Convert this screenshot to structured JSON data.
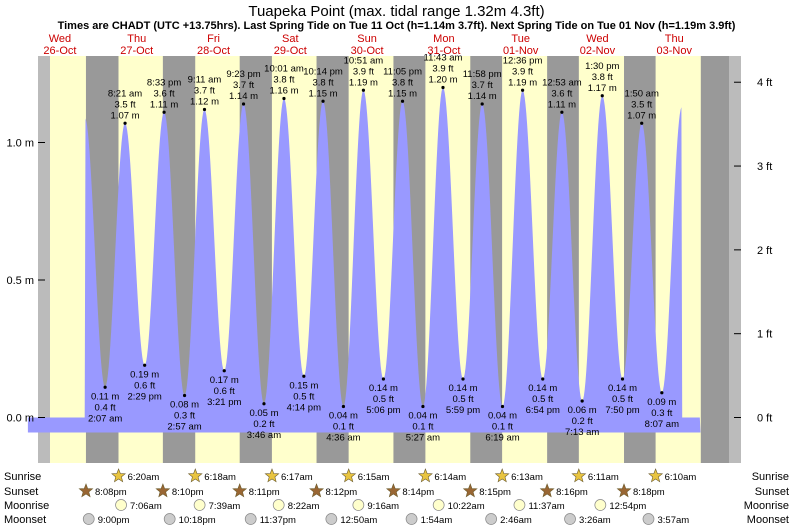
{
  "title": "Tuapeka Point (max. tidal range 1.32m 4.3ft)",
  "subtitle": "Times are CHADT (UTC +13.75hrs). Last Spring Tide on Tue 11 Oct (h=1.14m 3.7ft). Next Spring Tide on Tue 01 Nov (h=1.19m 3.9ft)",
  "days": [
    {
      "name": "Wed",
      "date": "26-Oct"
    },
    {
      "name": "Thu",
      "date": "27-Oct"
    },
    {
      "name": "Fri",
      "date": "28-Oct"
    },
    {
      "name": "Sat",
      "date": "29-Oct"
    },
    {
      "name": "Sun",
      "date": "30-Oct"
    },
    {
      "name": "Mon",
      "date": "31-Oct"
    },
    {
      "name": "Tue",
      "date": "01-Nov"
    },
    {
      "name": "Wed",
      "date": "02-Nov"
    },
    {
      "name": "Thu",
      "date": "03-Nov"
    }
  ],
  "chart_data": {
    "type": "area",
    "title": "Tuapeka Point (max. tidal range 1.32m 4.3ft)",
    "x_unit": "hours from midnight Wed 26-Oct",
    "y_left_ticks": [
      {
        "value": 0.0,
        "label": "0.0 m"
      },
      {
        "value": 0.5,
        "label": "0.5 m"
      },
      {
        "value": 1.0,
        "label": "1.0 m"
      }
    ],
    "y_right_ticks": [
      {
        "value": 0,
        "label": "0 ft"
      },
      {
        "value": 1,
        "label": "1 ft"
      },
      {
        "value": 2,
        "label": "2 ft"
      },
      {
        "value": 3,
        "label": "3 ft"
      },
      {
        "value": 4,
        "label": "4 ft"
      }
    ],
    "ylim_m": [
      -0.2,
      1.5
    ],
    "xlim_hours": [
      -9,
      218
    ],
    "extremes": [
      {
        "type": "high",
        "hour": 19.8,
        "height_m": 1.09,
        "time": "",
        "ft": "",
        "m": "",
        "clipped": true
      },
      {
        "type": "low",
        "hour": 26.12,
        "height_m": 0.11,
        "time": "2:07 am",
        "ft": "0.4 ft",
        "m": "0.11 m"
      },
      {
        "type": "high",
        "hour": 32.35,
        "height_m": 1.07,
        "time": "8:21 am",
        "ft": "3.5 ft",
        "m": "1.07 m"
      },
      {
        "type": "low",
        "hour": 38.48,
        "height_m": 0.19,
        "time": "2:29 pm",
        "ft": "0.6 ft",
        "m": "0.19 m"
      },
      {
        "type": "high",
        "hour": 44.55,
        "height_m": 1.11,
        "time": "8:33 pm",
        "ft": "3.6 ft",
        "m": "1.11 m"
      },
      {
        "type": "low",
        "hour": 50.95,
        "height_m": 0.08,
        "time": "2:57 am",
        "ft": "0.3 ft",
        "m": "0.08 m"
      },
      {
        "type": "high",
        "hour": 57.18,
        "height_m": 1.12,
        "time": "9:11 am",
        "ft": "3.7 ft",
        "m": "1.12 m"
      },
      {
        "type": "low",
        "hour": 63.35,
        "height_m": 0.17,
        "time": "3:21 pm",
        "ft": "0.6 ft",
        "m": "0.17 m"
      },
      {
        "type": "high",
        "hour": 69.38,
        "height_m": 1.14,
        "time": "9:23 pm",
        "ft": "3.7 ft",
        "m": "1.14 m"
      },
      {
        "type": "low",
        "hour": 75.77,
        "height_m": 0.05,
        "time": "3:46 am",
        "ft": "0.2 ft",
        "m": "0.05 m"
      },
      {
        "type": "high",
        "hour": 82.02,
        "height_m": 1.16,
        "time": "10:01 am",
        "ft": "3.8 ft",
        "m": "1.16 m"
      },
      {
        "type": "low",
        "hour": 88.23,
        "height_m": 0.15,
        "time": "4:14 pm",
        "ft": "0.5 ft",
        "m": "0.15 m"
      },
      {
        "type": "high",
        "hour": 94.23,
        "height_m": 1.15,
        "time": "10:14 pm",
        "ft": "3.8 ft",
        "m": "1.15 m"
      },
      {
        "type": "low",
        "hour": 100.6,
        "height_m": 0.04,
        "time": "4:36 am",
        "ft": "0.1 ft",
        "m": "0.04 m"
      },
      {
        "type": "high",
        "hour": 106.85,
        "height_m": 1.19,
        "time": "10:51 am",
        "ft": "3.9 ft",
        "m": "1.19 m"
      },
      {
        "type": "low",
        "hour": 113.1,
        "height_m": 0.14,
        "time": "5:06 pm",
        "ft": "0.5 ft",
        "m": "0.14 m"
      },
      {
        "type": "high",
        "hour": 119.08,
        "height_m": 1.15,
        "time": "11:05 pm",
        "ft": "3.8 ft",
        "m": "1.15 m"
      },
      {
        "type": "low",
        "hour": 125.45,
        "height_m": 0.04,
        "time": "5:27 am",
        "ft": "0.1 ft",
        "m": "0.04 m"
      },
      {
        "type": "high",
        "hour": 131.72,
        "height_m": 1.2,
        "time": "11:43 am",
        "ft": "3.9 ft",
        "m": "1.20 m"
      },
      {
        "type": "low",
        "hour": 137.98,
        "height_m": 0.14,
        "time": "5:59 pm",
        "ft": "0.5 ft",
        "m": "0.14 m"
      },
      {
        "type": "high",
        "hour": 143.97,
        "height_m": 1.14,
        "time": "11:58 pm",
        "ft": "3.7 ft",
        "m": "1.14 m"
      },
      {
        "type": "low",
        "hour": 150.32,
        "height_m": 0.04,
        "time": "6:19 am",
        "ft": "0.1 ft",
        "m": "0.04 m"
      },
      {
        "type": "high",
        "hour": 156.6,
        "height_m": 1.19,
        "time": "12:36 pm",
        "ft": "3.9 ft",
        "m": "1.19 m"
      },
      {
        "type": "low",
        "hour": 162.9,
        "height_m": 0.14,
        "time": "6:54 pm",
        "ft": "0.5 ft",
        "m": "0.14 m"
      },
      {
        "type": "high",
        "hour": 168.88,
        "height_m": 1.11,
        "time": "12:53 am",
        "ft": "3.6 ft",
        "m": "1.11 m"
      },
      {
        "type": "low",
        "hour": 175.22,
        "height_m": 0.06,
        "time": "7:13 am",
        "ft": "0.2 ft",
        "m": "0.06 m"
      },
      {
        "type": "high",
        "hour": 181.5,
        "height_m": 1.17,
        "time": "1:30 pm",
        "ft": "3.8 ft",
        "m": "1.17 m"
      },
      {
        "type": "low",
        "hour": 187.83,
        "height_m": 0.14,
        "time": "7:50 pm",
        "ft": "0.5 ft",
        "m": "0.14 m"
      },
      {
        "type": "high",
        "hour": 193.83,
        "height_m": 1.07,
        "time": "1:50 am",
        "ft": "3.5 ft",
        "m": "1.07 m"
      },
      {
        "type": "low",
        "hour": 200.12,
        "height_m": 0.09,
        "time": "8:07 am",
        "ft": "0.3 ft",
        "m": "0.09 m"
      },
      {
        "type": "high",
        "hour": 206.4,
        "height_m": 1.13,
        "time": "",
        "ft": "",
        "m": "",
        "clipped": true
      }
    ],
    "daylight": [
      {
        "sunrise": 6.33,
        "sunset": 20.13
      },
      {
        "sunrise": 30.3,
        "sunset": 44.17
      },
      {
        "sunrise": 54.28,
        "sunset": 68.18
      },
      {
        "sunrise": 78.25,
        "sunset": 92.2
      },
      {
        "sunrise": 102.23,
        "sunset": 116.23
      },
      {
        "sunrise": 126.22,
        "sunset": 140.25
      },
      {
        "sunrise": 150.2,
        "sunset": 164.27
      },
      {
        "sunrise": 174.18,
        "sunset": 188.3
      },
      {
        "sunrise": 198.17,
        "sunset": 212.3
      }
    ]
  },
  "astro": {
    "labels": {
      "sunrise": "Sunrise",
      "sunset": "Sunset",
      "moonrise": "Moonrise",
      "moonset": "Moonset"
    },
    "sunrise": [
      {
        "hour": 30.33,
        "time": "6:20am"
      },
      {
        "hour": 54.3,
        "time": "6:18am"
      },
      {
        "hour": 78.28,
        "time": "6:17am"
      },
      {
        "hour": 102.25,
        "time": "6:15am"
      },
      {
        "hour": 126.23,
        "time": "6:14am"
      },
      {
        "hour": 150.22,
        "time": "6:13am"
      },
      {
        "hour": 174.18,
        "time": "6:11am"
      },
      {
        "hour": 198.17,
        "time": "6:10am"
      }
    ],
    "sunset": [
      {
        "hour": 20.13,
        "time": "8:08pm"
      },
      {
        "hour": 44.17,
        "time": "8:10pm"
      },
      {
        "hour": 68.18,
        "time": "8:11pm"
      },
      {
        "hour": 92.2,
        "time": "8:12pm"
      },
      {
        "hour": 116.23,
        "time": "8:14pm"
      },
      {
        "hour": 140.25,
        "time": "8:15pm"
      },
      {
        "hour": 164.27,
        "time": "8:16pm"
      },
      {
        "hour": 188.3,
        "time": "8:18pm"
      }
    ],
    "moonrise": [
      {
        "hour": 31.1,
        "time": "7:06am"
      },
      {
        "hour": 55.65,
        "time": "7:39am"
      },
      {
        "hour": 80.37,
        "time": "8:22am"
      },
      {
        "hour": 105.27,
        "time": "9:16am"
      },
      {
        "hour": 130.37,
        "time": "10:22am"
      },
      {
        "hour": 155.62,
        "time": "11:37am"
      },
      {
        "hour": 180.9,
        "time": "12:54pm"
      }
    ],
    "moonset": [
      {
        "hour": 21.0,
        "time": "9:00pm"
      },
      {
        "hour": 46.3,
        "time": "10:18pm"
      },
      {
        "hour": 71.62,
        "time": "11:37pm"
      },
      {
        "hour": 96.83,
        "time": "12:50am"
      },
      {
        "hour": 121.9,
        "time": "1:54am"
      },
      {
        "hour": 146.77,
        "time": "2:46am"
      },
      {
        "hour": 171.43,
        "time": "3:26am"
      },
      {
        "hour": 195.95,
        "time": "3:57am"
      }
    ]
  },
  "colors": {
    "day": "#ffffcc",
    "night": "#999999",
    "water": "#9999ff",
    "frame": "#bbbbbb",
    "day_label": "#cc0000",
    "star": "#e8c440",
    "star_set": "#996633",
    "moon_rise": "#ffffcc",
    "moon_set": "#cccccc"
  }
}
